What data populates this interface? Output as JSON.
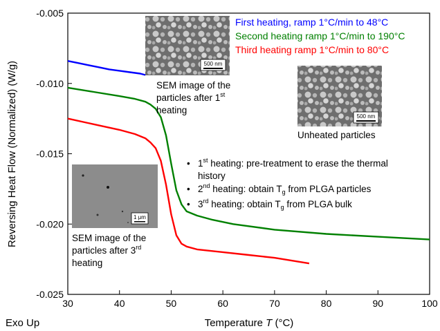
{
  "chart_data": {
    "type": "line",
    "title": "",
    "xlabel": "Temperature",
    "xlabel_var": "T",
    "xlabel_unit": "(°C)",
    "ylabel": "Reversing Heat Flow (Normalized)  (W/g)",
    "corner_label": "Exo Up",
    "xlim": [
      30,
      100
    ],
    "ylim": [
      -0.025,
      -0.005
    ],
    "xticks": [
      30,
      40,
      50,
      60,
      70,
      80,
      90,
      100
    ],
    "yticks": [
      -0.025,
      -0.02,
      -0.015,
      -0.01,
      -0.005
    ],
    "ytick_labels": [
      "-0.025",
      "-0.020",
      "-0.015",
      "-0.010",
      "-0.005"
    ],
    "grid": false,
    "legend_position": "top-right",
    "series": [
      {
        "name": "First heating, ramp 1°C/min to 48°C",
        "color": "#0000ff",
        "x": [
          30,
          32,
          34,
          36,
          38,
          40,
          42,
          44,
          45
        ],
        "y": [
          -0.0084,
          -0.00855,
          -0.0087,
          -0.00885,
          -0.009,
          -0.0091,
          -0.0092,
          -0.0093,
          -0.0094
        ]
      },
      {
        "name": "Second heating ramp 1°C/min to 190°C",
        "color": "#008000",
        "x": [
          30,
          35,
          40,
          43,
          45,
          46,
          47,
          48,
          49,
          50,
          51,
          52,
          53,
          55,
          58,
          62,
          70,
          80,
          90,
          100
        ],
        "y": [
          -0.0103,
          -0.0106,
          -0.0109,
          -0.0111,
          -0.0113,
          -0.0115,
          -0.0118,
          -0.0124,
          -0.0137,
          -0.0157,
          -0.0176,
          -0.0186,
          -0.0191,
          -0.0194,
          -0.0197,
          -0.02,
          -0.0204,
          -0.0207,
          -0.0209,
          -0.0211
        ]
      },
      {
        "name": "Third heating ramp 1°C/min to 80°C",
        "color": "#ff0000",
        "x": [
          30,
          35,
          40,
          43,
          45,
          46,
          47,
          48,
          49,
          50,
          51,
          52,
          53,
          55,
          60,
          65,
          70,
          76.7
        ],
        "y": [
          -0.0125,
          -0.0129,
          -0.0133,
          -0.0136,
          -0.0139,
          -0.0142,
          -0.0146,
          -0.0155,
          -0.0172,
          -0.0193,
          -0.0208,
          -0.0214,
          -0.0216,
          -0.0218,
          -0.022,
          -0.0222,
          -0.0224,
          -0.0228
        ]
      }
    ],
    "annotations": {
      "sem_after_first": [
        "SEM image of the",
        "particles after 1",
        "st",
        "heating"
      ],
      "sem_unheated": "Unheated particles",
      "sem_after_third": [
        "SEM image of the",
        "particles after 3",
        "rd",
        "heating"
      ],
      "scale_500_a": "500 nm",
      "scale_500_b": "500 nm",
      "scale_1um": "1 μm",
      "bullets": [
        {
          "sup_num": "1",
          "sup": "st",
          "text": " heating: pre-treatment to erase the thermal"
        },
        {
          "text": "history"
        },
        {
          "sup_num": "2",
          "sup": "nd",
          "text": " heating: obtain T",
          "sub": "g",
          "tail": " from PLGA particles"
        },
        {
          "sup_num": "3",
          "sup": "rd",
          "text": " heating: obtain T",
          "sub": "g",
          "tail": " from PLGA bulk"
        }
      ]
    }
  }
}
